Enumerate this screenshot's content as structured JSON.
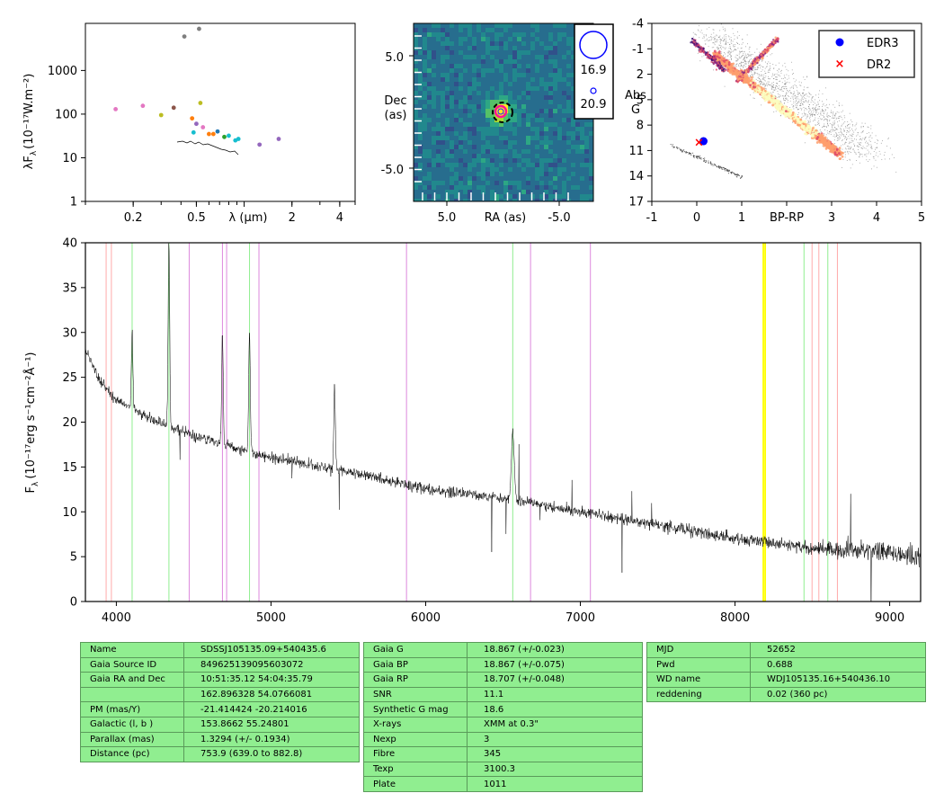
{
  "colors": {
    "spectrum": "#000000",
    "table_bg": "#90ee90",
    "edr3": "#0000ff",
    "dr2": "#ff0000",
    "balmer": "#90ee90",
    "helium": "#dd88dd",
    "calcium": "#ffaaaa",
    "sodium": "#ffff00"
  },
  "sed": {
    "ylabel": "λF",
    "ylabel_sub": "λ",
    "ylabel_units": "(10⁻¹⁷W.m⁻²)",
    "xlabel": "λ (μm)",
    "y_ticks": [
      "1",
      "10",
      "100",
      "1000"
    ],
    "x_ticks": [
      "0.2",
      "0.5",
      "2",
      "4"
    ],
    "scale": "log-log",
    "xlim": [
      0.1,
      5.0
    ],
    "ylim": [
      1,
      12000
    ],
    "points": [
      {
        "x": 0.155,
        "y": 130,
        "c": "#e377c2"
      },
      {
        "x": 0.23,
        "y": 155,
        "c": "#e377c2"
      },
      {
        "x": 0.3,
        "y": 95,
        "c": "#bcbd22"
      },
      {
        "x": 0.36,
        "y": 140,
        "c": "#8c564b"
      },
      {
        "x": 0.42,
        "y": 6000,
        "c": "#7f7f7f"
      },
      {
        "x": 0.52,
        "y": 9000,
        "c": "#7f7f7f"
      },
      {
        "x": 0.47,
        "y": 80,
        "c": "#ff7f0e"
      },
      {
        "x": 0.48,
        "y": 38,
        "c": "#17becf"
      },
      {
        "x": 0.5,
        "y": 60,
        "c": "#9467bd"
      },
      {
        "x": 0.53,
        "y": 180,
        "c": "#bcbd22"
      },
      {
        "x": 0.55,
        "y": 50,
        "c": "#e377c2"
      },
      {
        "x": 0.6,
        "y": 35,
        "c": "#ff7f0e"
      },
      {
        "x": 0.64,
        "y": 35,
        "c": "#ff7f0e"
      },
      {
        "x": 0.68,
        "y": 40,
        "c": "#1f77b4"
      },
      {
        "x": 0.75,
        "y": 30,
        "c": "#2ca02c"
      },
      {
        "x": 0.8,
        "y": 32,
        "c": "#17becf"
      },
      {
        "x": 0.88,
        "y": 25,
        "c": "#17becf"
      },
      {
        "x": 0.92,
        "y": 27,
        "c": "#17becf"
      },
      {
        "x": 1.25,
        "y": 20,
        "c": "#9467bd"
      },
      {
        "x": 1.65,
        "y": 27,
        "c": "#9467bd"
      }
    ]
  },
  "image": {
    "ylabel_line1": "Dec",
    "ylabel_line2": "(as)",
    "xlabel": "RA (as)",
    "x_ticks": [
      "5.0",
      "-5.0"
    ],
    "y_ticks": [
      "5.0",
      "-5.0"
    ],
    "legend": [
      "16.9",
      "20.9"
    ]
  },
  "cmd": {
    "xlabel": "BP-RP",
    "ylabel_line1": "Abs",
    "ylabel_line2": "G",
    "x_ticks": [
      "-1",
      "0",
      "1",
      "3",
      "4",
      "5"
    ],
    "y_ticks": [
      "-4",
      "-1",
      "2",
      "5",
      "8",
      "11",
      "14",
      "17"
    ],
    "legend": [
      {
        "label": "EDR3",
        "marker": "dot"
      },
      {
        "label": "DR2",
        "marker": "x"
      }
    ],
    "edr3": {
      "x": 0.15,
      "y": 9.9
    },
    "dr2": {
      "x": 0.05,
      "y": 10.0
    },
    "xlim": [
      -1,
      5
    ],
    "ylim": [
      17,
      -4
    ]
  },
  "chart_data": {
    "type": "line",
    "xlabel": "",
    "ylabel": "F_λ (10⁻¹⁷erg s⁻¹cm⁻²Å⁻¹)",
    "ylabel_main": "F",
    "ylabel_sub": "λ",
    "ylabel_units": "(10⁻¹⁷erg s⁻¹cm⁻²Å⁻¹)",
    "xlim": [
      3800,
      9200
    ],
    "ylim": [
      0,
      40
    ],
    "x_ticks": [
      "4000",
      "5000",
      "6000",
      "7000",
      "8000",
      "9000"
    ],
    "y_ticks": [
      "0",
      "5",
      "10",
      "15",
      "20",
      "25",
      "30",
      "35",
      "40"
    ],
    "continuum": [
      [
        3800,
        28
      ],
      [
        3900,
        24.5
      ],
      [
        4000,
        22.5
      ],
      [
        4200,
        20.5
      ],
      [
        4500,
        18.5
      ],
      [
        4800,
        17
      ],
      [
        5000,
        16
      ],
      [
        5500,
        14.5
      ],
      [
        6000,
        12.5
      ],
      [
        6500,
        11.5
      ],
      [
        7000,
        10
      ],
      [
        7500,
        8.5
      ],
      [
        8000,
        7
      ],
      [
        8500,
        6
      ],
      [
        9000,
        5.5
      ],
      [
        9200,
        5
      ]
    ],
    "emission": [
      {
        "x": 4102,
        "peak": 30
      },
      {
        "x": 4340,
        "peak": 40
      },
      {
        "x": 4686,
        "peak": 30
      },
      {
        "x": 4861,
        "peak": 30
      },
      {
        "x": 5411,
        "peak": 24
      },
      {
        "x": 6563,
        "peak": 19
      }
    ],
    "lines": {
      "balmer": [
        4102,
        4340,
        4861,
        6563,
        8446,
        8600
      ],
      "helium": [
        4471,
        4686,
        4713,
        4922,
        5876,
        6678,
        7065
      ],
      "calcium": [
        3934,
        3968,
        8498,
        8542,
        8662
      ],
      "sodium": [
        8183,
        8195
      ]
    }
  },
  "tables": [
    {
      "rows": [
        [
          "Name",
          "SDSSJ105135.09+540435.6"
        ],
        [
          "Gaia Source ID",
          "849625139095603072"
        ],
        [
          "Gaia RA and Dec",
          "10:51:35.12    54:04:35.79"
        ],
        [
          "",
          "162.896328    54.0766081"
        ],
        [
          "PM (mas/Y)",
          "-21.414424    -20.214016"
        ],
        [
          "Galactic (l, b )",
          "153.8662    55.24801"
        ],
        [
          "Parallax (mas)",
          "1.3294 (+/- 0.1934)"
        ],
        [
          "Distance (pc)",
          "753.9 (639.0 to 882.8)"
        ]
      ]
    },
    {
      "rows": [
        [
          "Gaia G",
          "18.867 (+/-0.023)"
        ],
        [
          "Gaia BP",
          "18.867 (+/-0.075)"
        ],
        [
          "Gaia RP",
          "18.707 (+/-0.048)"
        ],
        [
          "SNR",
          "11.1"
        ],
        [
          "Synthetic G mag",
          "18.6"
        ],
        [
          "X-rays",
          "XMM at 0.3\""
        ],
        [
          "Nexp",
          "3"
        ],
        [
          "Fibre",
          "345"
        ],
        [
          "Texp",
          "3100.3"
        ],
        [
          "Plate",
          "1011"
        ]
      ]
    },
    {
      "rows": [
        [
          "MJD",
          "52652"
        ],
        [
          "Pwd",
          "0.688"
        ],
        [
          "WD name",
          "WDJ105135.16+540436.10"
        ],
        [
          "reddening",
          "0.02 (360 pc)"
        ]
      ]
    }
  ]
}
